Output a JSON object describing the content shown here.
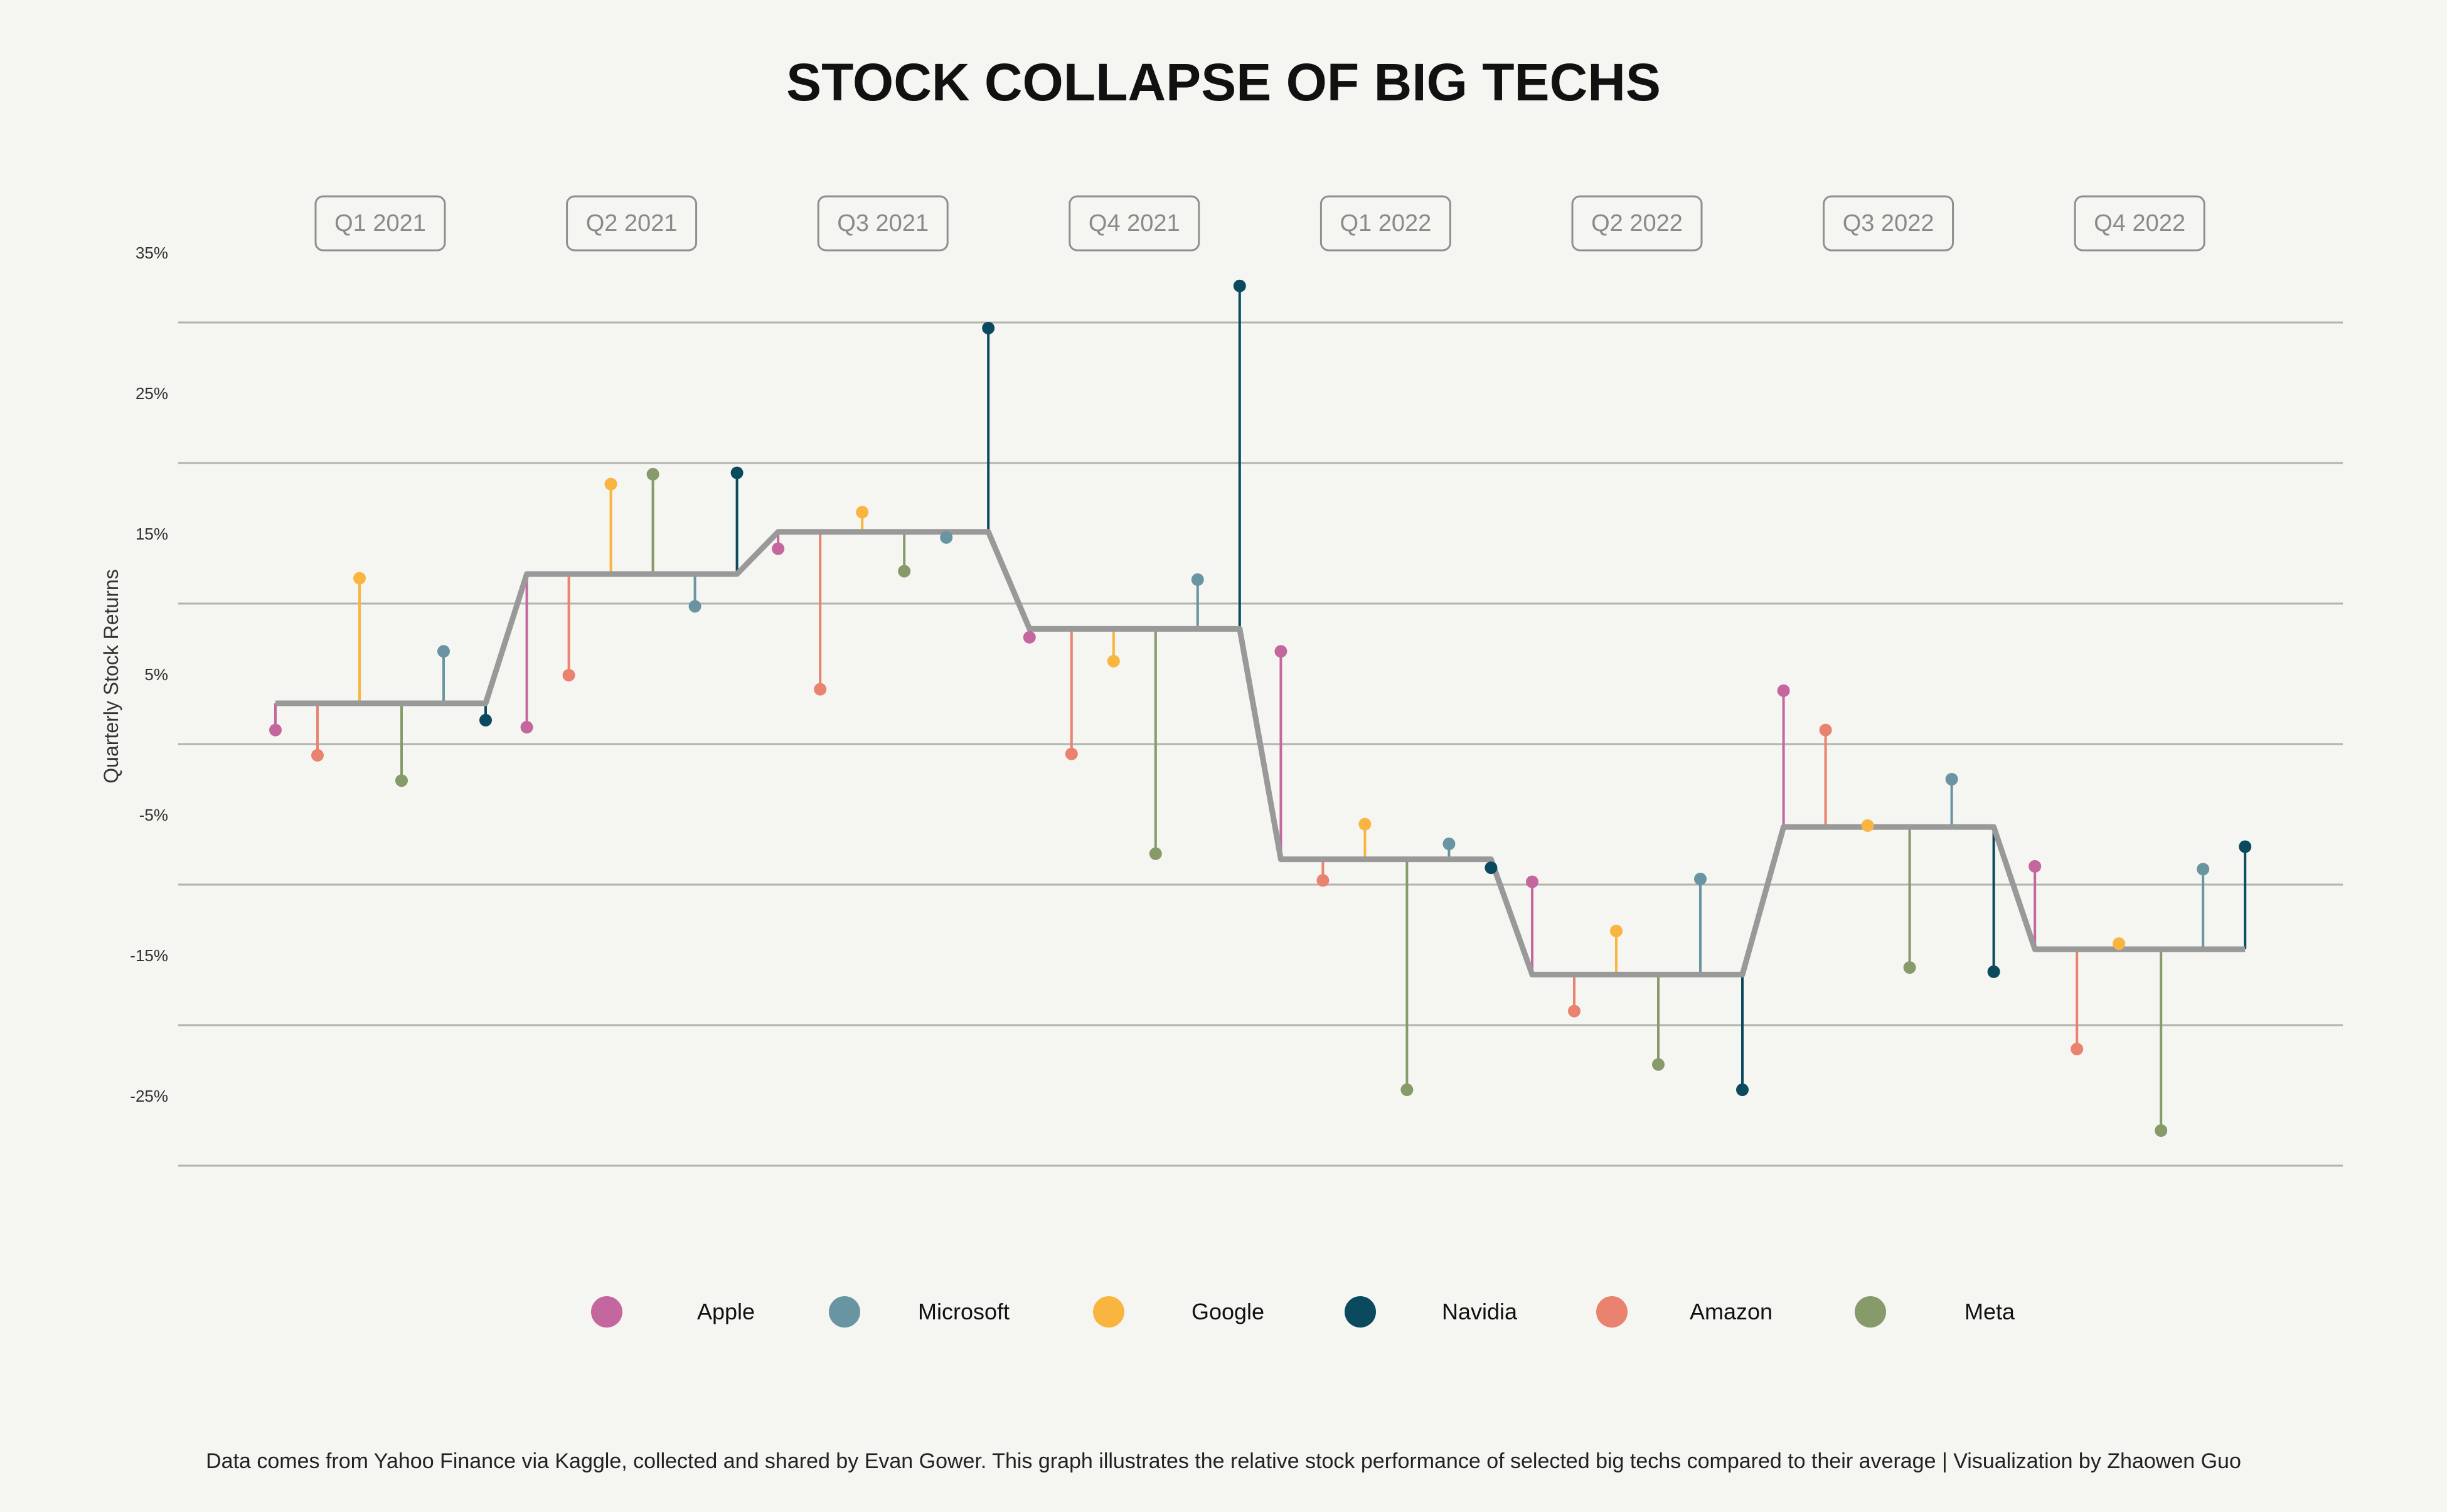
{
  "title": "STOCK COLLAPSE OF BIG TECHS",
  "caption": "Data comes from Yahoo Finance via Kaggle, collected and shared by Evan Gower. This graph illustrates the relative stock performance of selected big techs compared to their average | Visualization by Zhaowen Guo",
  "chart_data": {
    "type": "line",
    "subtype": "lollipop-with-stepped-average",
    "ylabel": "Quarterly Stock Returns",
    "xlabel": "",
    "ylim": [
      -30,
      35
    ],
    "yticks": [
      35,
      25,
      15,
      5,
      -5,
      -15,
      -25
    ],
    "ytick_labels": [
      "35%",
      "25%",
      "15%",
      "5%",
      "-5%",
      "-15%",
      "-25%"
    ],
    "grid": "horizontal",
    "legend_position": "bottom",
    "categories": [
      "Q1 2021",
      "Q2 2021",
      "Q3 2021",
      "Q4 2021",
      "Q1 2022",
      "Q2 2022",
      "Q3 2022",
      "Q4 2022"
    ],
    "series": [
      {
        "name": "Apple",
        "color": "#c4679e",
        "values": [
          1.0,
          1.2,
          13.9,
          7.6,
          6.6,
          -9.8,
          3.8,
          -8.7
        ]
      },
      {
        "name": "Amazon",
        "color": "#e9826f",
        "values": [
          -0.8,
          4.9,
          3.9,
          -0.7,
          -9.7,
          -19.0,
          1.0,
          -21.7
        ]
      },
      {
        "name": "Google",
        "color": "#f9b53f",
        "values": [
          11.8,
          18.5,
          16.5,
          5.9,
          -5.7,
          -13.3,
          -5.8,
          -14.2
        ]
      },
      {
        "name": "Meta",
        "color": "#869a6a",
        "values": [
          -2.6,
          19.2,
          12.3,
          -7.8,
          -24.6,
          -22.8,
          -15.9,
          -27.5
        ]
      },
      {
        "name": "Microsoft",
        "color": "#6895a1",
        "values": [
          6.6,
          9.8,
          14.7,
          11.7,
          -7.1,
          -9.6,
          -2.5,
          -8.9
        ]
      },
      {
        "name": "Navidia",
        "color": "#0b4a5e",
        "values": [
          1.7,
          19.3,
          29.6,
          32.6,
          -8.8,
          -24.6,
          -16.2,
          -7.3
        ]
      }
    ],
    "average": {
      "color": "#999999",
      "values": [
        2.9,
        12.1,
        15.1,
        8.2,
        -8.2,
        -16.4,
        -5.9,
        -14.6
      ]
    }
  },
  "legend_order": [
    "Apple",
    "Microsoft",
    "Google",
    "Navidia",
    "Amazon",
    "Meta"
  ]
}
